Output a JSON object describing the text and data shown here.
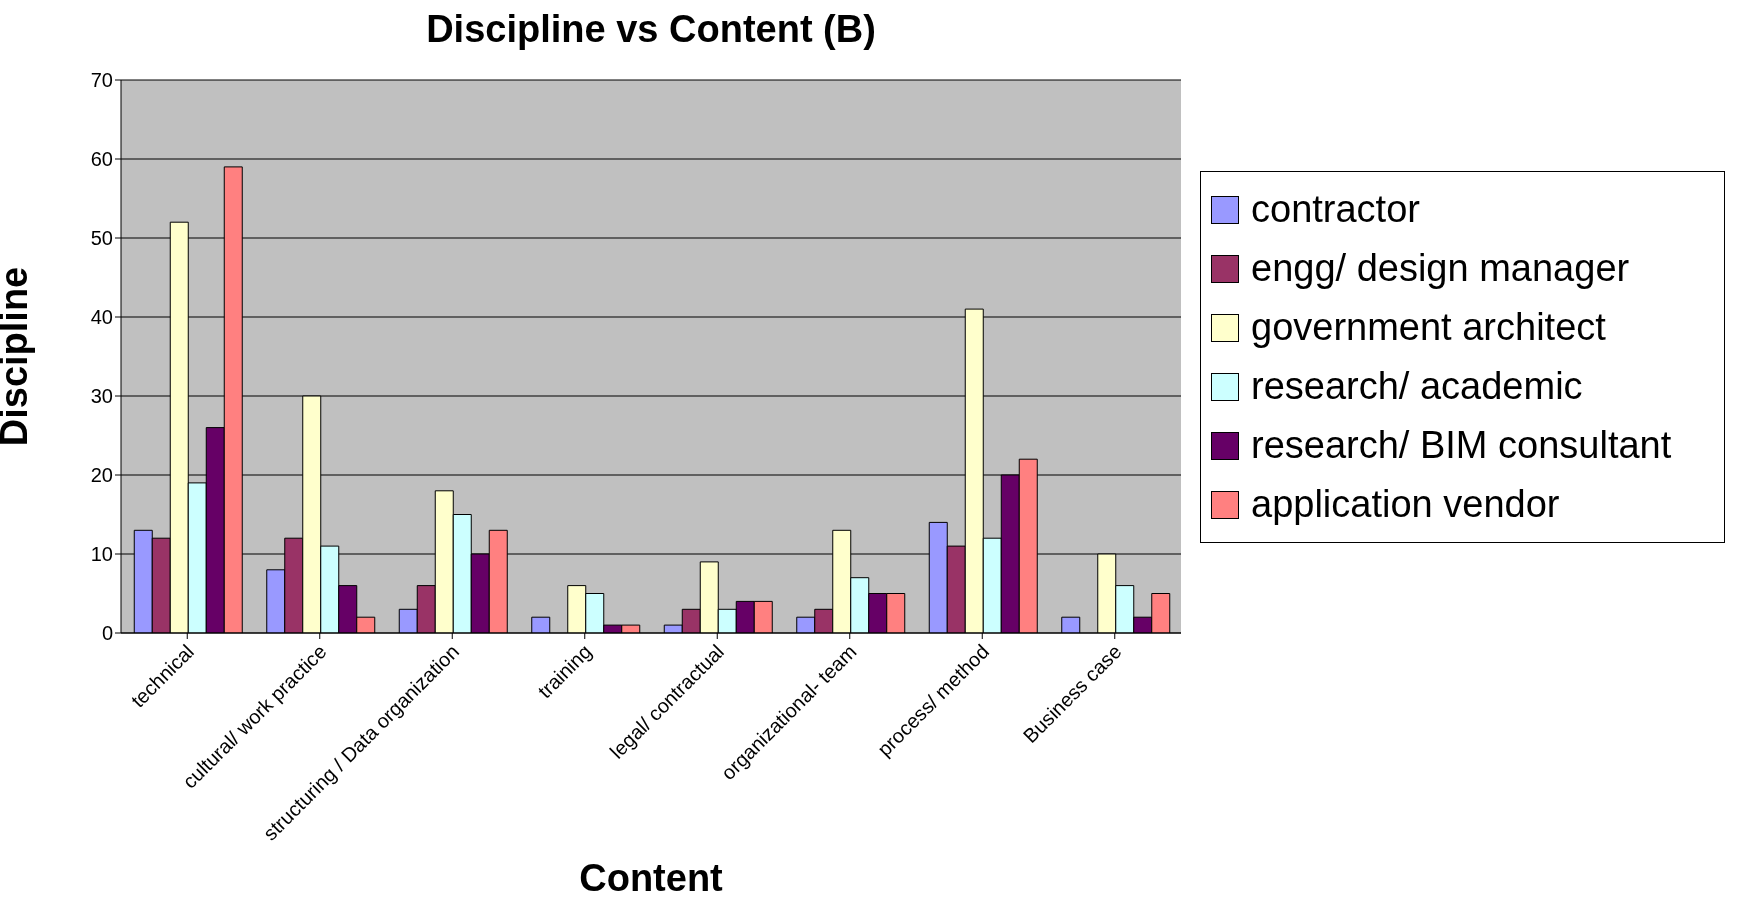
{
  "chart_data": {
    "type": "bar",
    "title": "Discipline vs Content (B)",
    "xlabel": "Content",
    "ylabel": "Discipline",
    "categories": [
      "technical",
      "cultural/ work practice",
      "structuring / Data organization",
      "training",
      "legal/ contractual",
      "organizational- team",
      "process/ method",
      "Business case"
    ],
    "series": [
      {
        "name": "contractor",
        "color": "#9999ff",
        "values": [
          13,
          8,
          3,
          2,
          1,
          2,
          14,
          2
        ]
      },
      {
        "name": "engg/ design manager",
        "color": "#993366",
        "values": [
          12,
          12,
          6,
          0,
          3,
          3,
          11,
          0
        ]
      },
      {
        "name": "government architect",
        "color": "#ffffcc",
        "values": [
          52,
          30,
          18,
          6,
          9,
          13,
          41,
          10
        ]
      },
      {
        "name": "research/ academic",
        "color": "#ccffff",
        "values": [
          19,
          11,
          15,
          5,
          3,
          7,
          12,
          6
        ]
      },
      {
        "name": "research/ BIM consultant",
        "color": "#660066",
        "values": [
          26,
          6,
          10,
          1,
          4,
          5,
          20,
          2
        ]
      },
      {
        "name": "application vendor",
        "color": "#ff8080",
        "values": [
          59,
          2,
          13,
          1,
          4,
          5,
          22,
          5
        ]
      }
    ],
    "ylim": [
      0,
      70
    ],
    "yticks": [
      0,
      10,
      20,
      30,
      40,
      50,
      60,
      70
    ],
    "grid": "y",
    "legend": "right"
  }
}
